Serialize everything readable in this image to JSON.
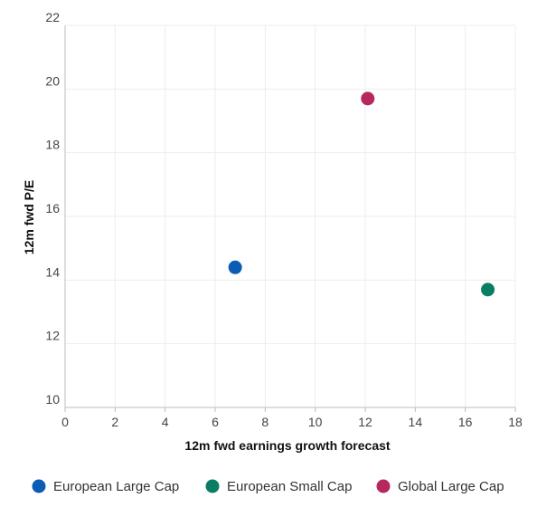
{
  "chart_data": {
    "type": "scatter",
    "title": "",
    "xlabel": "12m fwd earnings growth forecast",
    "ylabel": "12m fwd P/E",
    "xlim": [
      0,
      18
    ],
    "ylim": [
      10,
      22
    ],
    "xticks": [
      "0",
      "2",
      "4",
      "6",
      "8",
      "10",
      "12",
      "14",
      "16",
      "18"
    ],
    "yticks": [
      "10",
      "12",
      "14",
      "16",
      "18",
      "20",
      "22"
    ],
    "grid": true,
    "legend_position": "bottom",
    "series": [
      {
        "name": "European Large Cap",
        "color": "#0a5cb5",
        "points": [
          {
            "x": 6.8,
            "y": 14.4
          }
        ]
      },
      {
        "name": "European Small Cap",
        "color": "#0a7e62",
        "points": [
          {
            "x": 16.9,
            "y": 13.7
          }
        ]
      },
      {
        "name": "Global Large Cap",
        "color": "#b7285e",
        "points": [
          {
            "x": 12.1,
            "y": 19.7
          }
        ]
      }
    ]
  }
}
